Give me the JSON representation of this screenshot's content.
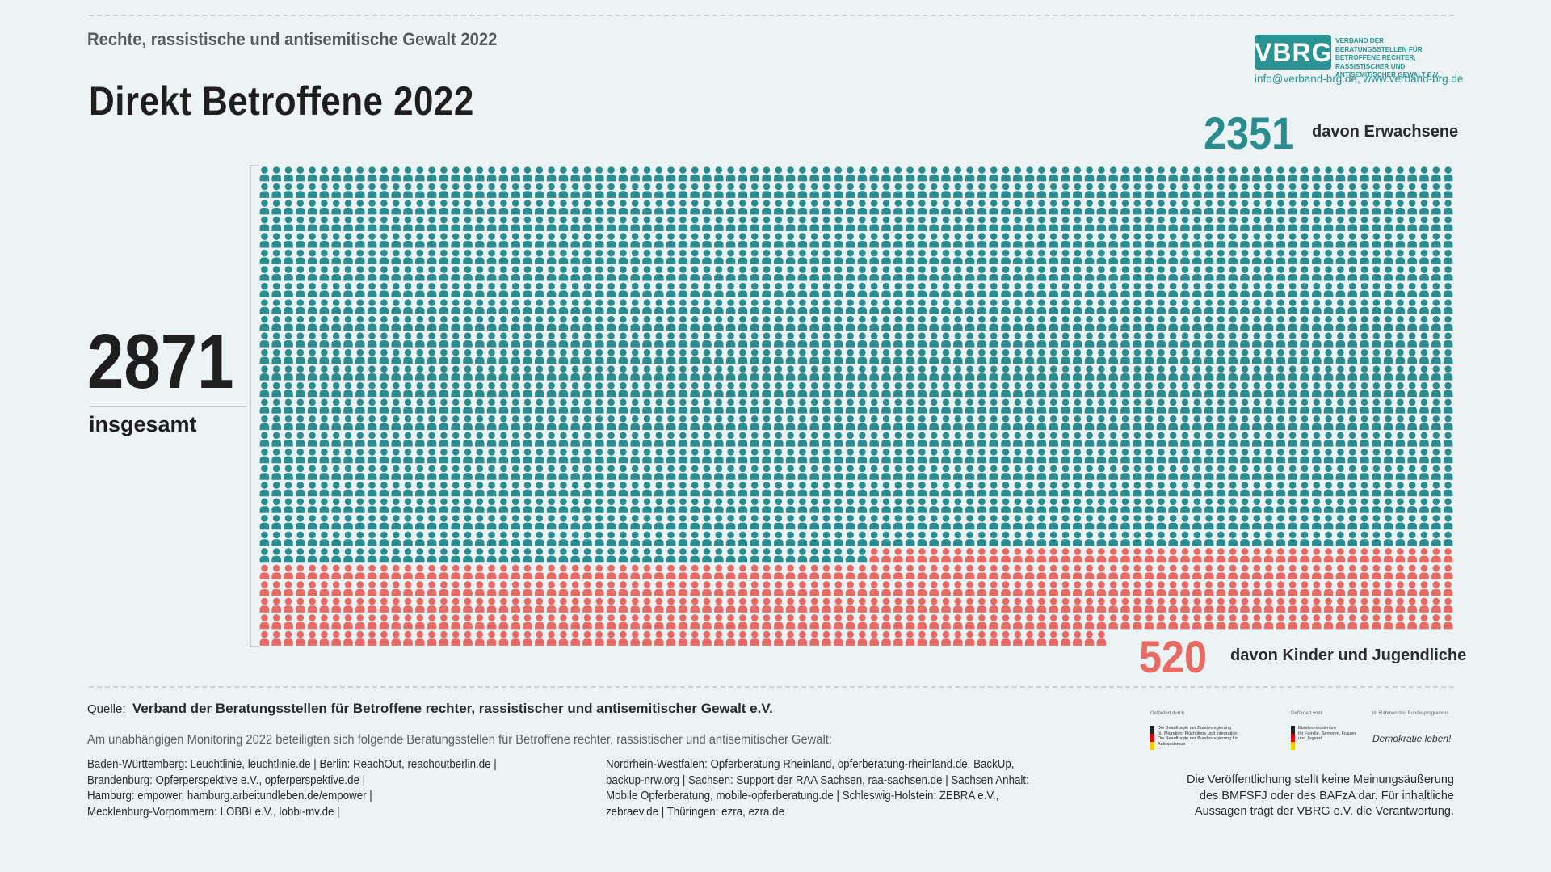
{
  "header": {
    "supertitle": "Rechte, rassistische und antisemitische Gewalt 2022",
    "title": "Direkt Betroffene 2022"
  },
  "logo": {
    "acronym": "VBRG",
    "fullname": "VERBAND DER BERATUNGSSTELLEN FÜR BETROFFENE RECHTER, RASSISTISCHER UND ANTISEMITISCHER GEWALT E.V.",
    "contact": "info@verband-brg.de, www.verband-brg.de"
  },
  "stats": {
    "total_value": "2871",
    "total_label": "insgesamt",
    "adults_value": "2351",
    "adults_label": "davon Erwachsene",
    "children_value": "520",
    "children_label": "davon Kinder und Jugendliche"
  },
  "chart_data": {
    "type": "waffle",
    "title": "Direkt Betroffene 2022",
    "total": 2871,
    "units_per_row": 100,
    "series": [
      {
        "name": "davon Erwachsene",
        "value": 2351,
        "color": "#2a8c8e"
      },
      {
        "name": "davon Kinder und Jugendliche",
        "value": 520,
        "color": "#e86a63"
      }
    ]
  },
  "footer": {
    "source_prefix": "Quelle:",
    "source_name": "Verband der Beratungsstellen für Betroffene rechter, rassistischer und antisemitischer Gewalt e.V.",
    "monitoring_intro": "Am unabhängigen Monitoring 2022 beteiligten sich folgende Beratungsstellen für Betroffene rechter, rassistischer und antisemitischer Gewalt:",
    "places_left": "Baden-Württemberg: Leuchtlinie, leuchtlinie.de | Berlin: ReachOut, reachoutberlin.de |\nBrandenburg: Opferperspektive e.V., opferperspektive.de |\nHamburg: empower, hamburg.arbeitundleben.de/empower |\nMecklenburg-Vorpommern: LOBBI e.V., lobbi-mv.de  |",
    "places_right": "Nordrhein-Westfalen: Opferberatung Rheinland, opferberatung-rheinland.de, BackUp,\nbackup-nrw.org | Sachsen: Support der RAA Sachsen, raa-sachsen.de | Sachsen Anhalt:\nMobile Opferberatung, mobile-opferberatung.de | Schleswig-Holstein: ZEBRA e.V.,\nzebraev.de | Thüringen: ezra, ezra.de",
    "disclaimer": "Die Veröffentlichung stellt keine Meinungsäußerung\ndes BMFSFJ oder des BAFzA dar. Für inhaltliche\nAussagen trägt der VBRG e.V. die Verantwortung."
  },
  "sponsors": [
    {
      "caption": "Gefördert durch",
      "text": "Die Beauftragte der Bundesregierung\nfür Migration, Flüchtlinge und Integration\nDie Beauftragte der Bundesregierung für Antirassismus"
    },
    {
      "caption": "Gefördert vom",
      "text": "Bundesministerium\nfür Familie, Senioren, Frauen\nund Jugend"
    },
    {
      "caption": "im Rahmen des Bundesprogramms",
      "text": "Demokratie leben!"
    }
  ]
}
